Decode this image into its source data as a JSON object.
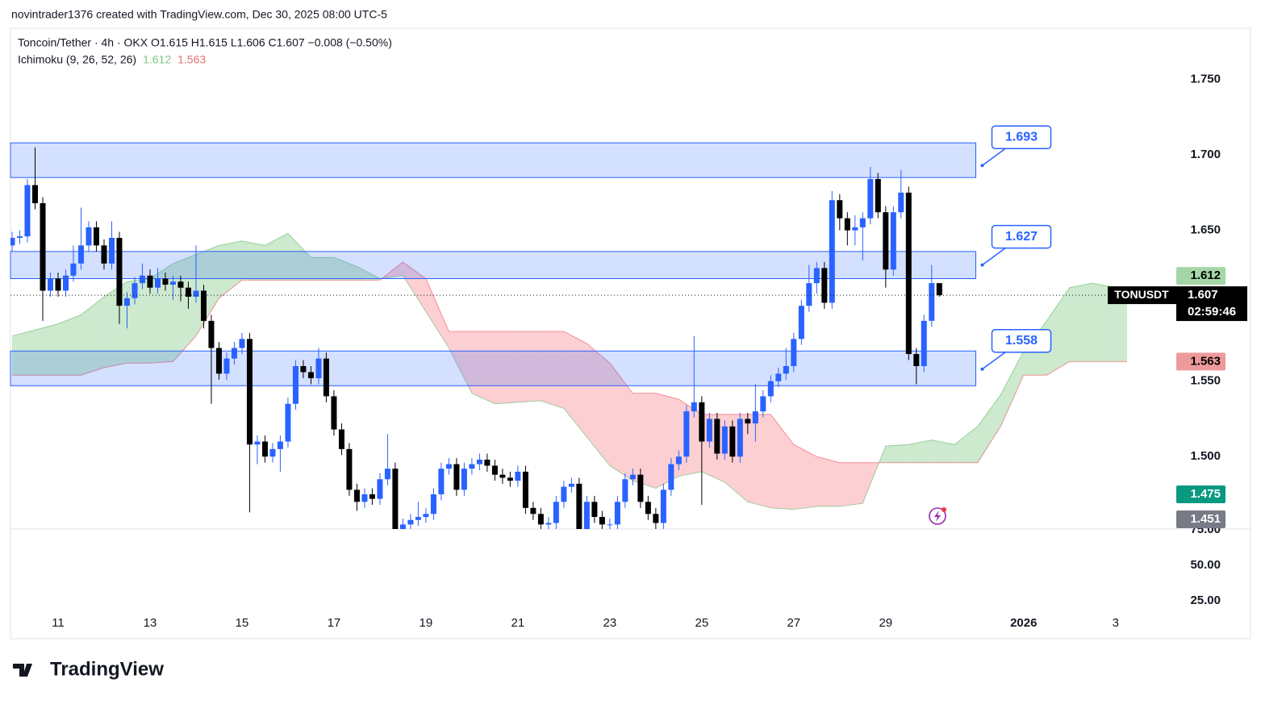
{
  "header": {
    "attribution": "novintrader1376 created with TradingView.com, Dec 30, 2025 08:00 UTC-5",
    "symbol_line": "Toncoin/Tether · 4h · OKX   O1.615   H1.615   L1.606   C1.607   −0.008 (−0.50%)",
    "logo": "TradingView"
  },
  "chart_data": {
    "type": "candlestick",
    "up_color": "#2962ff",
    "down_color": "#000000",
    "xlim": [
      9.965,
      35.18
    ],
    "xticks": [
      11,
      13,
      15,
      17,
      19,
      21,
      23,
      25,
      27,
      29,
      {
        "value": 32,
        "label": "2026"
      },
      {
        "value": 34,
        "label": "3"
      }
    ],
    "ylim": [
      1.452,
      1.784
    ],
    "yticks": [
      {
        "value": 1.75,
        "label": "1.750"
      },
      {
        "value": 1.7,
        "label": "1.700"
      },
      {
        "value": 1.65,
        "label": "1.650"
      },
      {
        "value": 1.55,
        "label": "1.550"
      },
      {
        "value": 1.5,
        "label": "1.500"
      }
    ],
    "lower_pane": {
      "ylim": [
        -1.7,
        75.6
      ],
      "yticks": [
        {
          "value": 75,
          "label": "75.00"
        },
        {
          "value": 50,
          "label": "50.00"
        },
        {
          "value": 25,
          "label": "25.00"
        }
      ]
    },
    "x": [
      10,
      10.167,
      10.333,
      10.5,
      10.667,
      10.833,
      11,
      11.167,
      11.333,
      11.5,
      11.667,
      11.833,
      12,
      12.167,
      12.333,
      12.5,
      12.667,
      12.833,
      13,
      13.167,
      13.333,
      13.5,
      13.667,
      13.833,
      14,
      14.167,
      14.333,
      14.5,
      14.667,
      14.833,
      15,
      15.167,
      15.333,
      15.5,
      15.667,
      15.833,
      16,
      16.167,
      16.333,
      16.5,
      16.667,
      16.833,
      17,
      17.167,
      17.333,
      17.5,
      17.667,
      17.833,
      18,
      18.167,
      18.333,
      18.5,
      18.667,
      18.833,
      19,
      19.167,
      19.333,
      19.5,
      19.667,
      19.833,
      20,
      20.167,
      20.333,
      20.5,
      20.667,
      20.833,
      21,
      21.167,
      21.333,
      21.5,
      21.667,
      21.833,
      22,
      22.167,
      22.333,
      22.5,
      22.667,
      22.833,
      23,
      23.167,
      23.333,
      23.5,
      23.667,
      23.833,
      24,
      24.167,
      24.333,
      24.5,
      24.667,
      24.833,
      25,
      25.167,
      25.333,
      25.5,
      25.667,
      25.833,
      26,
      26.167,
      26.333,
      26.5,
      26.667,
      26.833,
      27,
      27.167,
      27.333,
      27.5,
      27.667,
      27.833,
      28,
      28.167,
      28.333,
      28.5,
      28.667,
      28.833,
      29,
      29.167,
      29.333,
      29.5,
      29.667,
      29.833,
      30,
      30.167
    ],
    "open": [
      1.64,
      1.645,
      1.646,
      1.68,
      1.668,
      1.61,
      1.618,
      1.61,
      1.62,
      1.628,
      1.64,
      1.652,
      1.64,
      1.628,
      1.645,
      1.6,
      1.605,
      1.615,
      1.62,
      1.612,
      1.618,
      1.614,
      1.616,
      1.612,
      1.606,
      1.61,
      1.59,
      1.572,
      1.555,
      1.565,
      1.572,
      1.578,
      1.508,
      1.51,
      1.5,
      1.505,
      1.51,
      1.535,
      1.56,
      1.556,
      1.552,
      1.565,
      1.54,
      1.518,
      1.505,
      1.478,
      1.47,
      1.475,
      1.472,
      1.485,
      1.492,
      1.445,
      1.455,
      1.458,
      1.46,
      1.462,
      1.475,
      1.492,
      1.495,
      1.478,
      1.492,
      1.495,
      1.498,
      1.494,
      1.488,
      1.486,
      1.484,
      1.49,
      1.466,
      1.462,
      1.455,
      1.456,
      1.47,
      1.48,
      1.482,
      1.452,
      1.47,
      1.46,
      1.455,
      1.455,
      1.47,
      1.485,
      1.488,
      1.47,
      1.462,
      1.456,
      1.478,
      1.495,
      1.5,
      1.53,
      1.536,
      1.51,
      1.525,
      1.502,
      1.52,
      1.5,
      1.525,
      1.522,
      1.53,
      1.54,
      1.55,
      1.555,
      1.56,
      1.578,
      1.6,
      1.615,
      1.625,
      1.602,
      1.67,
      1.658,
      1.65,
      1.652,
      1.658,
      1.684,
      1.662,
      1.624,
      1.662,
      1.675,
      1.568,
      1.56,
      1.59,
      1.615
    ],
    "high": [
      1.649,
      1.65,
      1.684,
      1.705,
      1.672,
      1.622,
      1.622,
      1.624,
      1.64,
      1.665,
      1.656,
      1.656,
      1.644,
      1.656,
      1.649,
      1.609,
      1.619,
      1.628,
      1.624,
      1.625,
      1.622,
      1.62,
      1.62,
      1.616,
      1.64,
      1.614,
      1.594,
      1.576,
      1.569,
      1.576,
      1.582,
      1.582,
      1.514,
      1.514,
      1.509,
      1.514,
      1.539,
      1.564,
      1.564,
      1.56,
      1.572,
      1.569,
      1.544,
      1.522,
      1.509,
      1.482,
      1.479,
      1.479,
      1.489,
      1.515,
      1.496,
      1.459,
      1.462,
      1.47,
      1.466,
      1.479,
      1.496,
      1.499,
      1.499,
      1.496,
      1.499,
      1.502,
      1.502,
      1.498,
      1.492,
      1.49,
      1.494,
      1.494,
      1.47,
      1.466,
      1.46,
      1.474,
      1.484,
      1.486,
      1.486,
      1.474,
      1.474,
      1.464,
      1.459,
      1.474,
      1.489,
      1.492,
      1.492,
      1.474,
      1.466,
      1.482,
      1.499,
      1.504,
      1.534,
      1.58,
      1.54,
      1.529,
      1.529,
      1.524,
      1.524,
      1.529,
      1.529,
      1.548,
      1.544,
      1.554,
      1.559,
      1.572,
      1.582,
      1.604,
      1.627,
      1.629,
      1.629,
      1.676,
      1.674,
      1.662,
      1.66,
      1.662,
      1.692,
      1.688,
      1.666,
      1.666,
      1.69,
      1.679,
      1.572,
      1.594,
      1.627,
      1.615
    ],
    "low": [
      1.636,
      1.641,
      1.642,
      1.664,
      1.59,
      1.606,
      1.606,
      1.606,
      1.616,
      1.624,
      1.636,
      1.636,
      1.624,
      1.624,
      1.588,
      1.585,
      1.601,
      1.611,
      1.608,
      1.608,
      1.61,
      1.604,
      1.603,
      1.598,
      1.602,
      1.585,
      1.535,
      1.551,
      1.551,
      1.561,
      1.568,
      1.463,
      1.495,
      1.496,
      1.496,
      1.49,
      1.506,
      1.531,
      1.552,
      1.548,
      1.548,
      1.536,
      1.514,
      1.501,
      1.474,
      1.464,
      1.466,
      1.468,
      1.468,
      1.481,
      1.441,
      1.441,
      1.451,
      1.454,
      1.456,
      1.458,
      1.471,
      1.488,
      1.474,
      1.474,
      1.488,
      1.491,
      1.49,
      1.484,
      1.482,
      1.48,
      1.48,
      1.462,
      1.458,
      1.451,
      1.451,
      1.452,
      1.466,
      1.476,
      1.448,
      1.448,
      1.456,
      1.451,
      1.451,
      1.451,
      1.466,
      1.481,
      1.466,
      1.458,
      1.452,
      1.452,
      1.474,
      1.491,
      1.496,
      1.526,
      1.468,
      1.506,
      1.498,
      1.498,
      1.496,
      1.496,
      1.515,
      1.51,
      1.526,
      1.536,
      1.546,
      1.551,
      1.556,
      1.574,
      1.596,
      1.608,
      1.598,
      1.598,
      1.65,
      1.64,
      1.64,
      1.63,
      1.654,
      1.658,
      1.612,
      1.62,
      1.658,
      1.564,
      1.548,
      1.556,
      1.586,
      1.606
    ],
    "close": [
      1.645,
      1.646,
      1.68,
      1.668,
      1.61,
      1.618,
      1.61,
      1.62,
      1.628,
      1.64,
      1.652,
      1.64,
      1.628,
      1.645,
      1.6,
      1.605,
      1.615,
      1.62,
      1.612,
      1.618,
      1.614,
      1.616,
      1.612,
      1.606,
      1.61,
      1.59,
      1.572,
      1.555,
      1.565,
      1.572,
      1.578,
      1.508,
      1.51,
      1.5,
      1.505,
      1.51,
      1.535,
      1.56,
      1.556,
      1.552,
      1.565,
      1.54,
      1.518,
      1.505,
      1.478,
      1.47,
      1.475,
      1.472,
      1.485,
      1.492,
      1.445,
      1.455,
      1.458,
      1.46,
      1.462,
      1.475,
      1.492,
      1.495,
      1.478,
      1.492,
      1.495,
      1.498,
      1.494,
      1.488,
      1.486,
      1.484,
      1.49,
      1.466,
      1.462,
      1.455,
      1.456,
      1.47,
      1.48,
      1.482,
      1.452,
      1.47,
      1.46,
      1.455,
      1.455,
      1.47,
      1.485,
      1.488,
      1.47,
      1.462,
      1.456,
      1.478,
      1.495,
      1.5,
      1.53,
      1.536,
      1.51,
      1.525,
      1.502,
      1.52,
      1.5,
      1.525,
      1.522,
      1.53,
      1.54,
      1.55,
      1.555,
      1.56,
      1.578,
      1.6,
      1.615,
      1.625,
      1.602,
      1.67,
      1.658,
      1.65,
      1.652,
      1.658,
      1.684,
      1.662,
      1.624,
      1.662,
      1.675,
      1.568,
      1.56,
      1.59,
      1.615,
      1.607
    ],
    "indicator": {
      "name": "Ichimoku (9, 26, 52, 26)",
      "values": [
        1.612,
        1.563
      ],
      "colors": [
        "#81c784",
        "#e57373"
      ]
    },
    "ichimoku": {
      "bull_color": "#4caf50",
      "bear_color": "#f23645",
      "x": [
        10,
        10.5,
        11,
        11.5,
        12,
        12.5,
        13,
        13.5,
        14,
        14.5,
        15,
        15.5,
        16,
        16.5,
        17,
        17.5,
        18,
        18.5,
        19,
        19.5,
        20,
        20.5,
        21,
        21.5,
        22,
        22.5,
        23,
        23.5,
        24,
        24.5,
        25,
        25.5,
        26,
        26.5,
        27,
        27.5,
        28,
        28.5,
        29,
        29.5,
        30,
        30.5,
        31,
        31.5,
        32,
        32.5,
        33,
        33.5,
        34,
        34.25
      ],
      "span_a": [
        1.58,
        1.584,
        1.588,
        1.594,
        1.606,
        1.616,
        1.618,
        1.628,
        1.634,
        1.64,
        1.643,
        1.64,
        1.648,
        1.632,
        1.632,
        1.626,
        1.618,
        1.62,
        1.596,
        1.572,
        1.542,
        1.535,
        1.536,
        1.537,
        1.532,
        1.513,
        1.494,
        1.484,
        1.479,
        1.487,
        1.49,
        1.483,
        1.47,
        1.466,
        1.465,
        1.467,
        1.467,
        1.469,
        1.507,
        1.508,
        1.511,
        1.508,
        1.52,
        1.541,
        1.57,
        1.59,
        1.612,
        1.615,
        1.612,
        1.612
      ],
      "span_b": [
        1.554,
        1.554,
        1.554,
        1.554,
        1.559,
        1.562,
        1.562,
        1.563,
        1.58,
        1.605,
        1.617,
        1.617,
        1.617,
        1.617,
        1.617,
        1.617,
        1.617,
        1.629,
        1.618,
        1.583,
        1.583,
        1.583,
        1.583,
        1.583,
        1.583,
        1.575,
        1.562,
        1.542,
        1.542,
        1.538,
        1.528,
        1.528,
        1.528,
        1.528,
        1.508,
        1.5,
        1.496,
        1.496,
        1.496,
        1.496,
        1.496,
        1.496,
        1.496,
        1.52,
        1.554,
        1.554,
        1.563,
        1.563,
        1.563,
        1.563
      ]
    },
    "zones": [
      {
        "top": 1.708,
        "bottom": 1.685,
        "x_end": 30.96,
        "label": 1.693
      },
      {
        "top": 1.636,
        "bottom": 1.618,
        "x_end": 30.96,
        "label": 1.627
      },
      {
        "top": 1.57,
        "bottom": 1.547,
        "x_end": 30.96,
        "label": 1.558
      }
    ],
    "symbol_badge": {
      "name": "TONUSDT",
      "value": 1.607,
      "countdown": "02:59:46"
    },
    "price_badges": [
      {
        "value": 1.612,
        "color": "#a5d6a7",
        "text_color": "#000000"
      },
      {
        "value": 1.563,
        "color": "#ef9a9a",
        "text_color": "#000000"
      },
      {
        "value": 1.475,
        "color": "#089981",
        "text_color": "#ffffff"
      },
      {
        "value": 1.451,
        "color": "#787b86",
        "text_color": "#ffffff"
      }
    ]
  }
}
